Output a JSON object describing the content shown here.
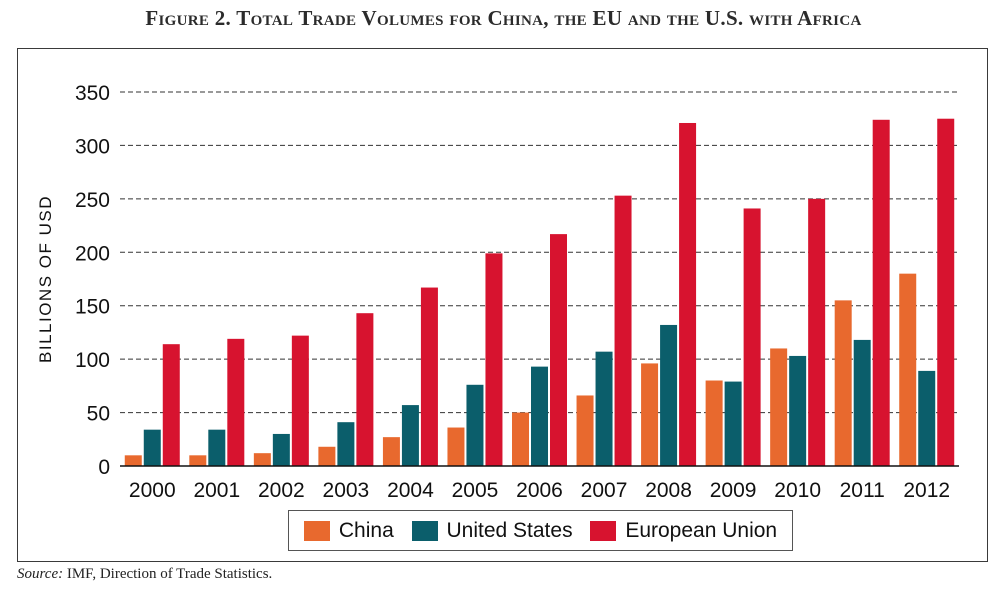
{
  "title": "Figure 2. Total Trade Volumes for China, the EU and the U.S. with Africa",
  "source_label": "Source:",
  "source_text": "IMF, Direction of Trade Statistics.",
  "chart_data": {
    "type": "bar",
    "title": "Figure 2. Total Trade Volumes for China, the EU and the U.S. with Africa",
    "xlabel": "",
    "ylabel": "BILLIONS OF USD",
    "ylim": [
      0,
      350
    ],
    "yticks": [
      0,
      50,
      100,
      150,
      200,
      250,
      300,
      350
    ],
    "grid": "horizontal dashed",
    "legend_position": "bottom",
    "categories": [
      "2000",
      "2001",
      "2002",
      "2003",
      "2004",
      "2005",
      "2006",
      "2007",
      "2008",
      "2009",
      "2010",
      "2011",
      "2012"
    ],
    "series": [
      {
        "name": "China",
        "color": "#E8692E",
        "values": [
          10,
          10,
          12,
          18,
          27,
          36,
          50,
          66,
          96,
          80,
          110,
          155,
          180
        ]
      },
      {
        "name": "United States",
        "color": "#0B5E6B",
        "values": [
          34,
          34,
          30,
          41,
          57,
          76,
          93,
          107,
          132,
          79,
          103,
          118,
          89
        ]
      },
      {
        "name": "European Union",
        "color": "#D7132F",
        "values": [
          114,
          119,
          122,
          143,
          167,
          199,
          217,
          253,
          321,
          241,
          250,
          324,
          325
        ]
      }
    ]
  }
}
